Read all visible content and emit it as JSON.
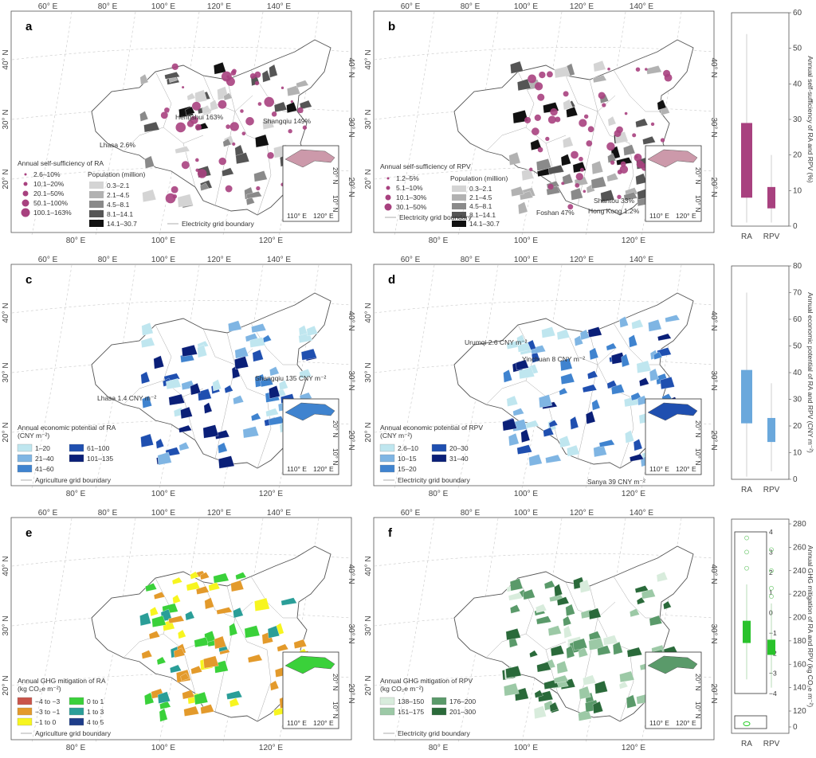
{
  "lon_ticks": [
    "60° E",
    "80° E",
    "100° E",
    "120° E",
    "140° E"
  ],
  "lat_ticks": [
    "40° N",
    "30° N",
    "20° N"
  ],
  "inset_lon": [
    "110° E",
    "120° E"
  ],
  "inset_lat": [
    "20° N",
    "10° N"
  ],
  "panels": {
    "a": {
      "letter": "a",
      "legend_title": "Annual self-sufficiency of RA",
      "circle_items": [
        "2.6–10%",
        "10.1–20%",
        "20.1–50%",
        "50.1–100%",
        "100.1–163%"
      ],
      "pop_title": "Population (million)",
      "pop_items": [
        "0.3–2.1",
        "2.1–4.5",
        "4.5–8.1",
        "8.1–14.1",
        "14.1–30.7"
      ],
      "boundary": "Electricity grid boundary",
      "annotations": [
        "Hengshui 163%",
        "Shangqiu 149%",
        "Lhasa 2.6%"
      ]
    },
    "b": {
      "letter": "b",
      "legend_title": "Annual self-sufficiency of RPV",
      "circle_items": [
        "1.2–5%",
        "5.1–10%",
        "10.1–30%",
        "30.1–50%"
      ],
      "pop_title": "Population (million)",
      "pop_items": [
        "0.3–2.1",
        "2.1–4.5",
        "4.5–8.1",
        "8.1–14.1",
        "14.1–30.7"
      ],
      "boundary": "Electricity grid boundary",
      "annotations": [
        "Shantou 33%",
        "Foshan 47%",
        "Hong Kong 1.2%"
      ]
    },
    "c": {
      "letter": "c",
      "legend_title": "Annual economic potential of RA",
      "legend_unit": "(CNY m⁻²)",
      "items": [
        "1–20",
        "21–40",
        "41–60",
        "61–100",
        "101–135"
      ],
      "colors": [
        "#bfe6ef",
        "#7fb5e3",
        "#3f83cf",
        "#1f4fb0",
        "#0a1f78"
      ],
      "boundary": "Agriculture grid boundary",
      "annotations": [
        "Shangqiu 135 CNY m⁻²",
        "Lhasa 1.4 CNY m⁻²"
      ]
    },
    "d": {
      "letter": "d",
      "legend_title": "Annual economic potential of RPV",
      "legend_unit": "(CNY m⁻²)",
      "items": [
        "2.6–10",
        "10–15",
        "15–20",
        "20–30",
        "31–40"
      ],
      "colors": [
        "#bfe6ef",
        "#7fb5e3",
        "#3f83cf",
        "#1f4fb0",
        "#0a1f78"
      ],
      "boundary": "Electricity grid boundary",
      "annotations": [
        "Urumqi 2.6 CNY m⁻²",
        "Yinchuan 8 CNY m⁻²",
        "Sanya 39 CNY m⁻²"
      ]
    },
    "e": {
      "letter": "e",
      "legend_title": "Annual GHG mitigation of RA",
      "legend_unit": "(kg CO₂e m⁻²)",
      "items": [
        "−4 to −3",
        "−3 to −1",
        "−1 to 0",
        "0 to 1",
        "1 to 3",
        "4 to 5"
      ],
      "colors": [
        "#c9544a",
        "#e39a2b",
        "#f7f51f",
        "#3ad13a",
        "#2a9e98",
        "#1e3d8a"
      ],
      "boundary": "Agriculture grid boundary"
    },
    "f": {
      "letter": "f",
      "legend_title": "Annual GHG mitigation of RPV",
      "legend_unit": "(kg CO₂e m⁻²)",
      "items": [
        "138–150",
        "151–175",
        "176–200",
        "201–300"
      ],
      "colors": [
        "#d8ecdc",
        "#9cc9a6",
        "#5a9a6a",
        "#2a6a3a"
      ],
      "boundary": "Electricity grid boundary"
    }
  },
  "box_plots": {
    "top": {
      "ylabel": "Annual self-sufficiency of RA and RPV (%)",
      "ticks": [
        "0",
        "10",
        "20",
        "30",
        "40",
        "50",
        "60"
      ],
      "categories": [
        "RA",
        "RPV"
      ],
      "color": "#a8417f"
    },
    "mid": {
      "ylabel": "Annual economic potential of RA and RPV (CNY m⁻²)",
      "ticks": [
        "0",
        "10",
        "20",
        "30",
        "40",
        "50",
        "60",
        "70",
        "80"
      ],
      "categories": [
        "RA",
        "RPV"
      ],
      "color": "#6aa8dc"
    },
    "bot": {
      "ylabel": "Annual GHG mitigation of RA and RPV (kg CO₂e m⁻²)",
      "ticks_right": [
        "0",
        "120",
        "140",
        "160",
        "180",
        "200",
        "220",
        "240",
        "260",
        "280"
      ],
      "ticks_left": [
        "4",
        "3",
        "2",
        "1",
        "0",
        "−1",
        "−2",
        "−3",
        "−4"
      ],
      "categories": [
        "RA",
        "RPV"
      ],
      "color": "#29c22b"
    }
  },
  "chart_data": [
    {
      "type": "box",
      "title": "",
      "ylabel": "Annual self-sufficiency of RA and RPV (%)",
      "ylim": [
        0,
        60
      ],
      "categories": [
        "RA",
        "RPV"
      ],
      "series": [
        {
          "name": "RA",
          "whisker_low": 1,
          "q1": 8,
          "q3": 29,
          "whisker_high": 54
        },
        {
          "name": "RPV",
          "whisker_low": 1,
          "q1": 5,
          "q3": 11,
          "whisker_high": 20
        }
      ]
    },
    {
      "type": "box",
      "title": "",
      "ylabel": "Annual economic potential of RA and RPV (CNY m⁻²)",
      "ylim": [
        0,
        80
      ],
      "categories": [
        "RA",
        "RPV"
      ],
      "series": [
        {
          "name": "RA",
          "whisker_low": 1,
          "q1": 21,
          "q3": 41,
          "whisker_high": 70
        },
        {
          "name": "RPV",
          "whisker_low": 3,
          "q1": 14,
          "q3": 23,
          "whisker_high": 36
        }
      ]
    },
    {
      "type": "box",
      "title": "",
      "ylabel": "Annual GHG mitigation of RA and RPV (kg CO₂e m⁻²)",
      "ylim": [
        0,
        280
      ],
      "categories": [
        "RA",
        "RPV"
      ],
      "series": [
        {
          "name": "RA",
          "whisker_low": -3.3,
          "q1": -1.5,
          "q3": -0.4,
          "whisker_high": 1.4
        },
        {
          "name": "RPV",
          "whisker_low": 140,
          "q1": 168,
          "q3": 181,
          "whisker_high": 212
        }
      ]
    }
  ]
}
